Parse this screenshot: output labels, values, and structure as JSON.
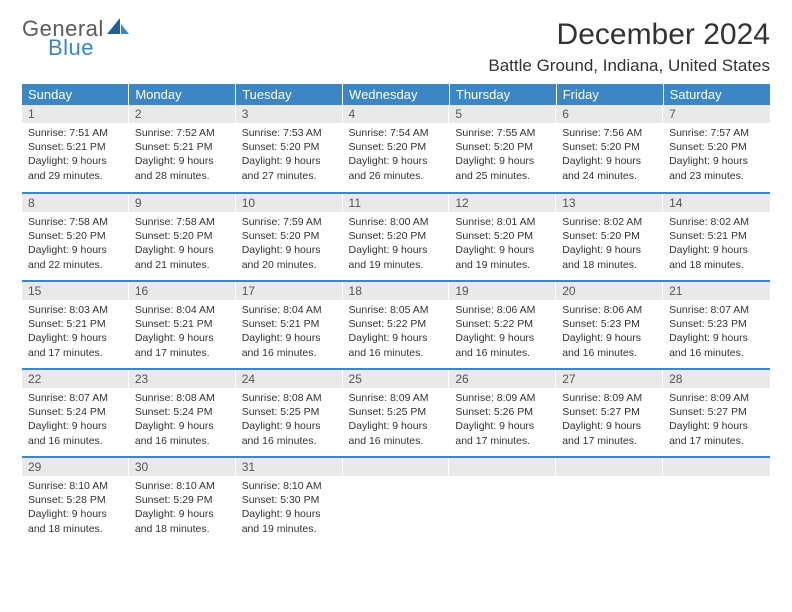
{
  "brand": {
    "word1": "General",
    "word2": "Blue"
  },
  "colors": {
    "header_bg": "#3d86c6",
    "header_text": "#ffffff",
    "daynum_bg": "#e9e9e9",
    "row_divider": "#3d86c6",
    "body_text": "#333333",
    "logo_gray": "#5a5a5a",
    "logo_blue": "#3d86c6",
    "page_bg": "#ffffff"
  },
  "typography": {
    "title_fontsize": 30,
    "location_fontsize": 17,
    "weekday_fontsize": 13,
    "daynum_fontsize": 12,
    "body_fontsize": 10.5,
    "font_family": "Arial"
  },
  "title": "December 2024",
  "location": "Battle Ground, Indiana, United States",
  "weekdays": [
    "Sunday",
    "Monday",
    "Tuesday",
    "Wednesday",
    "Thursday",
    "Friday",
    "Saturday"
  ],
  "weeks": [
    [
      {
        "n": "1",
        "sr": "Sunrise: 7:51 AM",
        "ss": "Sunset: 5:21 PM",
        "dl": "Daylight: 9 hours and 29 minutes."
      },
      {
        "n": "2",
        "sr": "Sunrise: 7:52 AM",
        "ss": "Sunset: 5:21 PM",
        "dl": "Daylight: 9 hours and 28 minutes."
      },
      {
        "n": "3",
        "sr": "Sunrise: 7:53 AM",
        "ss": "Sunset: 5:20 PM",
        "dl": "Daylight: 9 hours and 27 minutes."
      },
      {
        "n": "4",
        "sr": "Sunrise: 7:54 AM",
        "ss": "Sunset: 5:20 PM",
        "dl": "Daylight: 9 hours and 26 minutes."
      },
      {
        "n": "5",
        "sr": "Sunrise: 7:55 AM",
        "ss": "Sunset: 5:20 PM",
        "dl": "Daylight: 9 hours and 25 minutes."
      },
      {
        "n": "6",
        "sr": "Sunrise: 7:56 AM",
        "ss": "Sunset: 5:20 PM",
        "dl": "Daylight: 9 hours and 24 minutes."
      },
      {
        "n": "7",
        "sr": "Sunrise: 7:57 AM",
        "ss": "Sunset: 5:20 PM",
        "dl": "Daylight: 9 hours and 23 minutes."
      }
    ],
    [
      {
        "n": "8",
        "sr": "Sunrise: 7:58 AM",
        "ss": "Sunset: 5:20 PM",
        "dl": "Daylight: 9 hours and 22 minutes."
      },
      {
        "n": "9",
        "sr": "Sunrise: 7:58 AM",
        "ss": "Sunset: 5:20 PM",
        "dl": "Daylight: 9 hours and 21 minutes."
      },
      {
        "n": "10",
        "sr": "Sunrise: 7:59 AM",
        "ss": "Sunset: 5:20 PM",
        "dl": "Daylight: 9 hours and 20 minutes."
      },
      {
        "n": "11",
        "sr": "Sunrise: 8:00 AM",
        "ss": "Sunset: 5:20 PM",
        "dl": "Daylight: 9 hours and 19 minutes."
      },
      {
        "n": "12",
        "sr": "Sunrise: 8:01 AM",
        "ss": "Sunset: 5:20 PM",
        "dl": "Daylight: 9 hours and 19 minutes."
      },
      {
        "n": "13",
        "sr": "Sunrise: 8:02 AM",
        "ss": "Sunset: 5:20 PM",
        "dl": "Daylight: 9 hours and 18 minutes."
      },
      {
        "n": "14",
        "sr": "Sunrise: 8:02 AM",
        "ss": "Sunset: 5:21 PM",
        "dl": "Daylight: 9 hours and 18 minutes."
      }
    ],
    [
      {
        "n": "15",
        "sr": "Sunrise: 8:03 AM",
        "ss": "Sunset: 5:21 PM",
        "dl": "Daylight: 9 hours and 17 minutes."
      },
      {
        "n": "16",
        "sr": "Sunrise: 8:04 AM",
        "ss": "Sunset: 5:21 PM",
        "dl": "Daylight: 9 hours and 17 minutes."
      },
      {
        "n": "17",
        "sr": "Sunrise: 8:04 AM",
        "ss": "Sunset: 5:21 PM",
        "dl": "Daylight: 9 hours and 16 minutes."
      },
      {
        "n": "18",
        "sr": "Sunrise: 8:05 AM",
        "ss": "Sunset: 5:22 PM",
        "dl": "Daylight: 9 hours and 16 minutes."
      },
      {
        "n": "19",
        "sr": "Sunrise: 8:06 AM",
        "ss": "Sunset: 5:22 PM",
        "dl": "Daylight: 9 hours and 16 minutes."
      },
      {
        "n": "20",
        "sr": "Sunrise: 8:06 AM",
        "ss": "Sunset: 5:23 PM",
        "dl": "Daylight: 9 hours and 16 minutes."
      },
      {
        "n": "21",
        "sr": "Sunrise: 8:07 AM",
        "ss": "Sunset: 5:23 PM",
        "dl": "Daylight: 9 hours and 16 minutes."
      }
    ],
    [
      {
        "n": "22",
        "sr": "Sunrise: 8:07 AM",
        "ss": "Sunset: 5:24 PM",
        "dl": "Daylight: 9 hours and 16 minutes."
      },
      {
        "n": "23",
        "sr": "Sunrise: 8:08 AM",
        "ss": "Sunset: 5:24 PM",
        "dl": "Daylight: 9 hours and 16 minutes."
      },
      {
        "n": "24",
        "sr": "Sunrise: 8:08 AM",
        "ss": "Sunset: 5:25 PM",
        "dl": "Daylight: 9 hours and 16 minutes."
      },
      {
        "n": "25",
        "sr": "Sunrise: 8:09 AM",
        "ss": "Sunset: 5:25 PM",
        "dl": "Daylight: 9 hours and 16 minutes."
      },
      {
        "n": "26",
        "sr": "Sunrise: 8:09 AM",
        "ss": "Sunset: 5:26 PM",
        "dl": "Daylight: 9 hours and 17 minutes."
      },
      {
        "n": "27",
        "sr": "Sunrise: 8:09 AM",
        "ss": "Sunset: 5:27 PM",
        "dl": "Daylight: 9 hours and 17 minutes."
      },
      {
        "n": "28",
        "sr": "Sunrise: 8:09 AM",
        "ss": "Sunset: 5:27 PM",
        "dl": "Daylight: 9 hours and 17 minutes."
      }
    ],
    [
      {
        "n": "29",
        "sr": "Sunrise: 8:10 AM",
        "ss": "Sunset: 5:28 PM",
        "dl": "Daylight: 9 hours and 18 minutes."
      },
      {
        "n": "30",
        "sr": "Sunrise: 8:10 AM",
        "ss": "Sunset: 5:29 PM",
        "dl": "Daylight: 9 hours and 18 minutes."
      },
      {
        "n": "31",
        "sr": "Sunrise: 8:10 AM",
        "ss": "Sunset: 5:30 PM",
        "dl": "Daylight: 9 hours and 19 minutes."
      },
      {
        "n": "",
        "sr": "",
        "ss": "",
        "dl": ""
      },
      {
        "n": "",
        "sr": "",
        "ss": "",
        "dl": ""
      },
      {
        "n": "",
        "sr": "",
        "ss": "",
        "dl": ""
      },
      {
        "n": "",
        "sr": "",
        "ss": "",
        "dl": ""
      }
    ]
  ]
}
